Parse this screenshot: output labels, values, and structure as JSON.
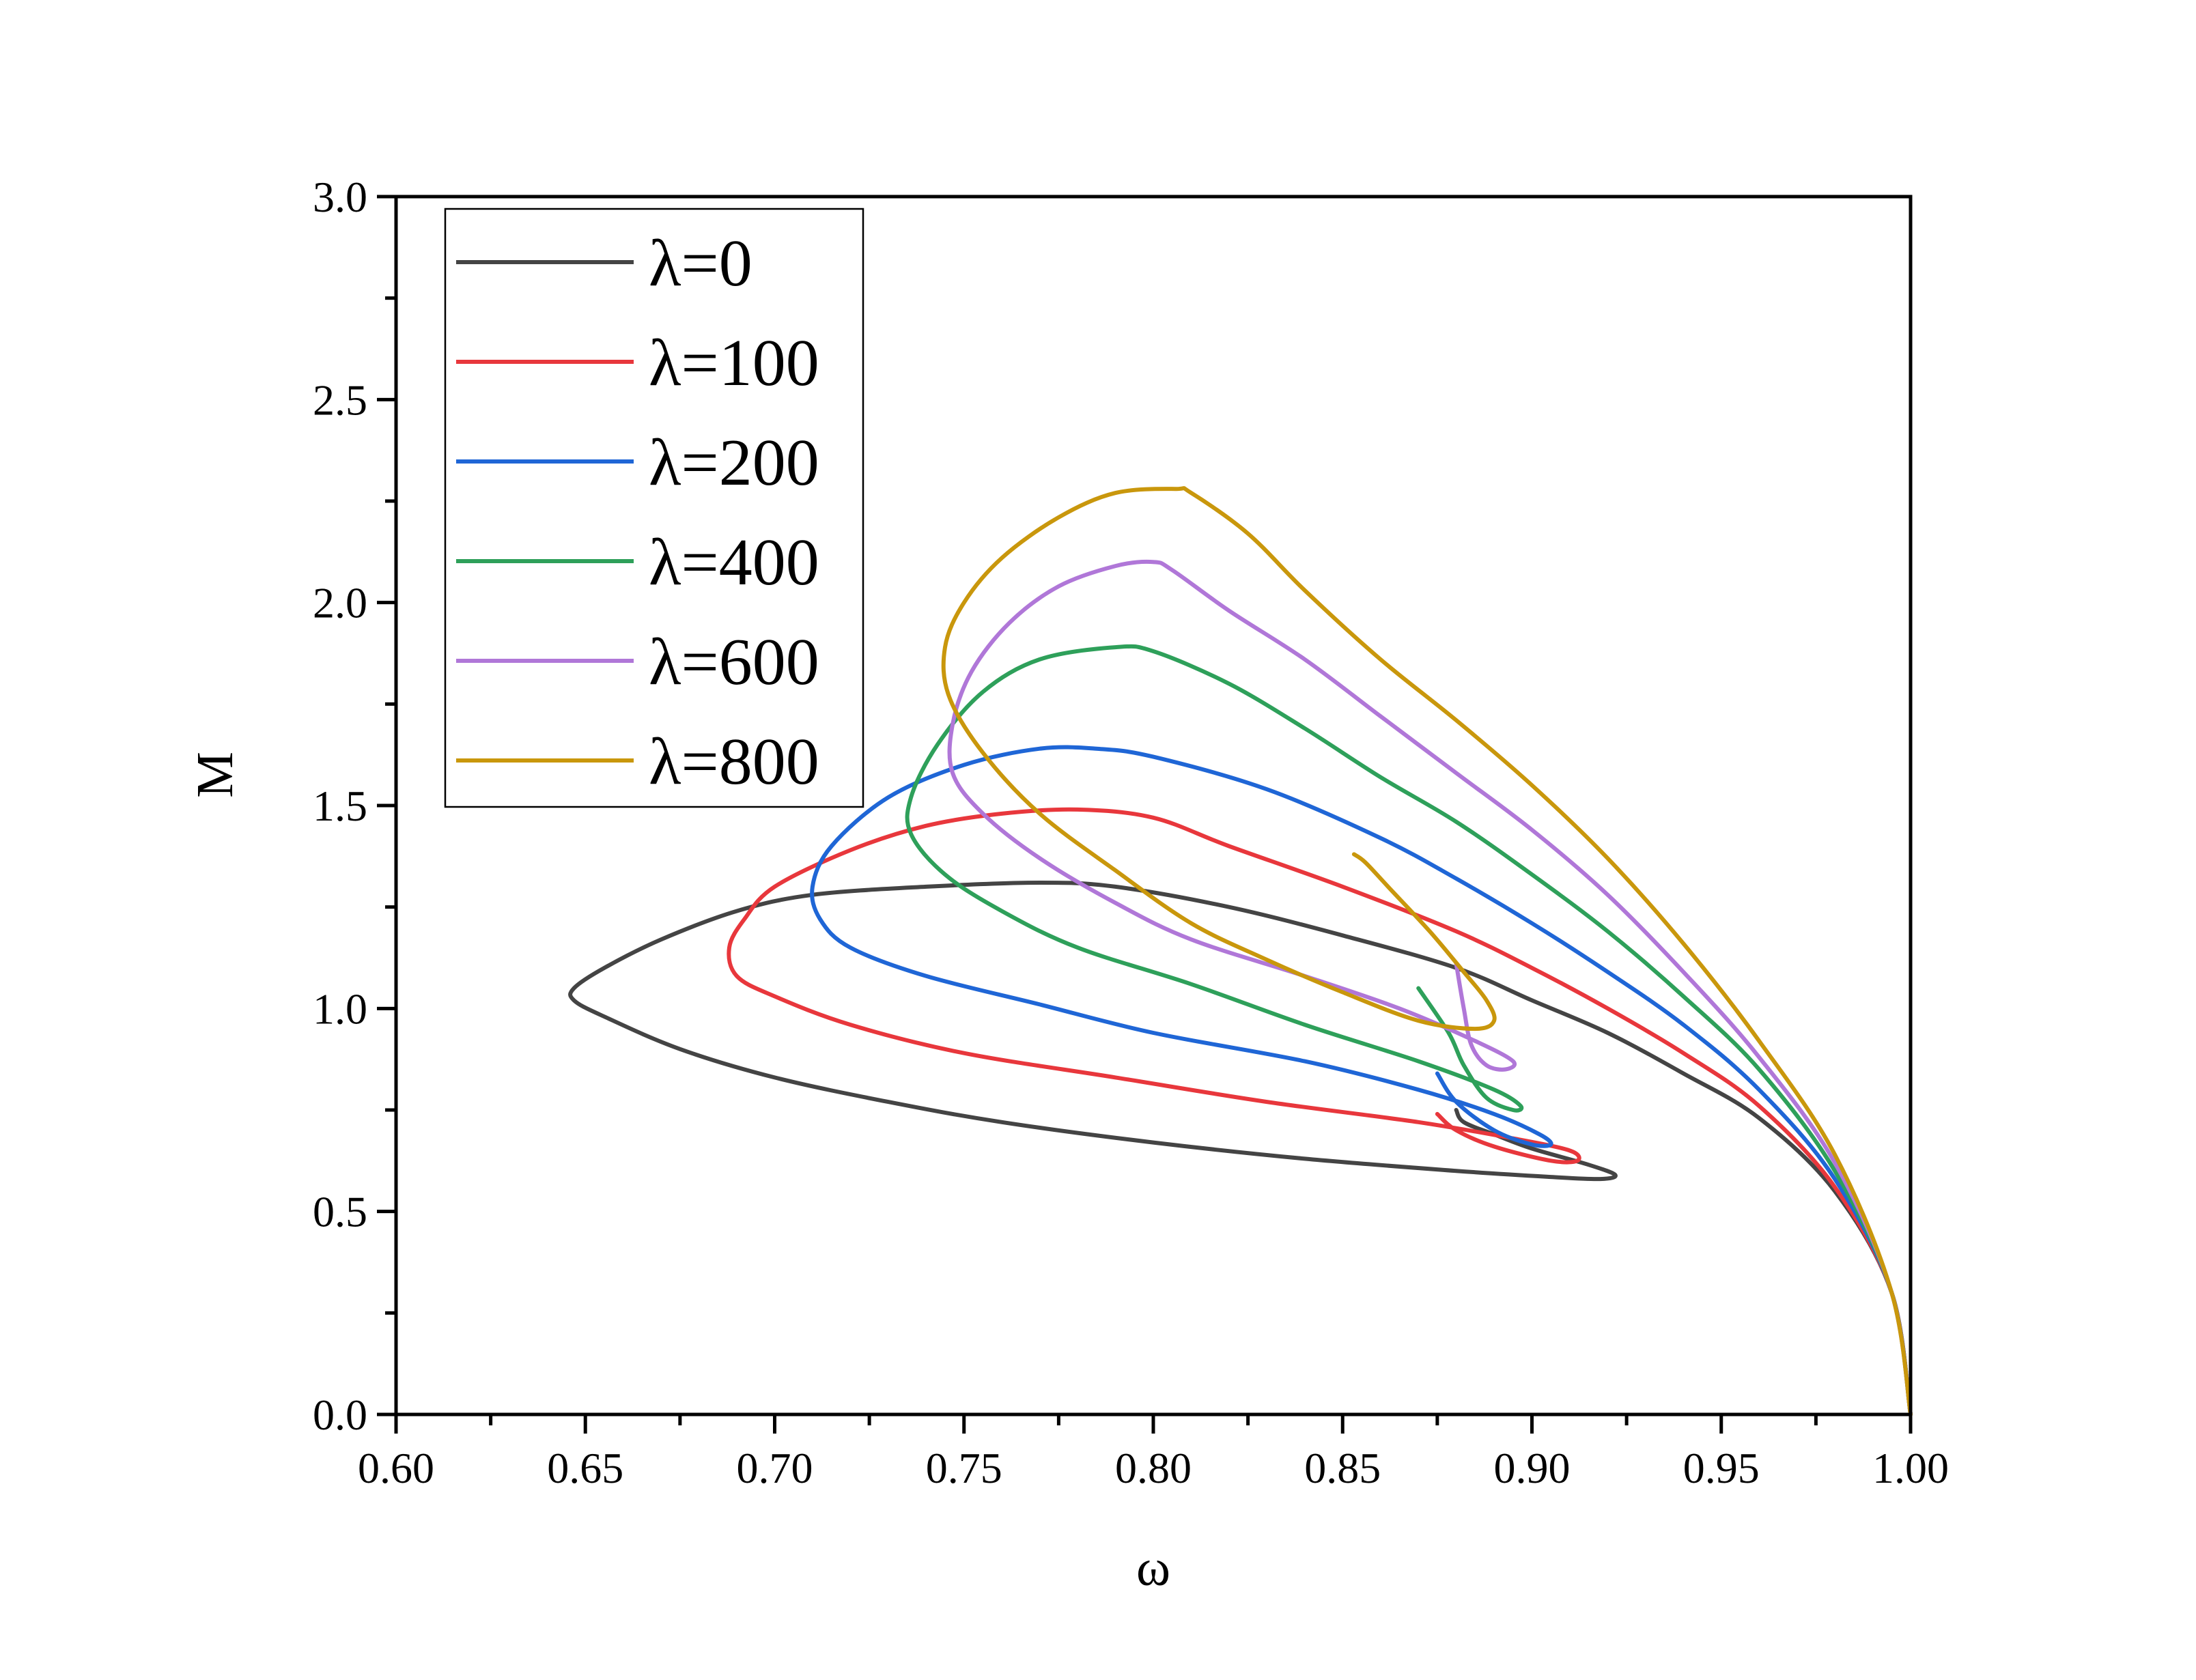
{
  "chart_data": {
    "type": "line",
    "xlabel": "ω",
    "ylabel": "M",
    "xlim": [
      0.6,
      1.0
    ],
    "ylim": [
      0.0,
      3.0
    ],
    "x_ticks": [
      "0.60",
      "0.65",
      "0.70",
      "0.75",
      "0.80",
      "0.85",
      "0.90",
      "0.95",
      "1.00"
    ],
    "y_ticks": [
      "0.0",
      "0.5",
      "1.0",
      "1.5",
      "2.0",
      "2.5",
      "3.0"
    ],
    "grid": false,
    "legend_position": "top-left",
    "series": [
      {
        "name": "λ=0",
        "color": "#444444",
        "points": [
          [
            1.0,
            0.0
          ],
          [
            0.995,
            0.3
          ],
          [
            0.98,
            0.55
          ],
          [
            0.96,
            0.73
          ],
          [
            0.94,
            0.84
          ],
          [
            0.92,
            0.94
          ],
          [
            0.9,
            1.02
          ],
          [
            0.88,
            1.1
          ],
          [
            0.85,
            1.18
          ],
          [
            0.82,
            1.25
          ],
          [
            0.79,
            1.3
          ],
          [
            0.77,
            1.31
          ],
          [
            0.74,
            1.3
          ],
          [
            0.71,
            1.28
          ],
          [
            0.69,
            1.24
          ],
          [
            0.67,
            1.17
          ],
          [
            0.655,
            1.1
          ],
          [
            0.647,
            1.05
          ],
          [
            0.647,
            1.02
          ],
          [
            0.655,
            0.98
          ],
          [
            0.675,
            0.9
          ],
          [
            0.7,
            0.83
          ],
          [
            0.73,
            0.77
          ],
          [
            0.76,
            0.72
          ],
          [
            0.8,
            0.67
          ],
          [
            0.84,
            0.63
          ],
          [
            0.88,
            0.6
          ],
          [
            0.905,
            0.585
          ],
          [
            0.918,
            0.58
          ],
          [
            0.922,
            0.59
          ],
          [
            0.915,
            0.615
          ],
          [
            0.9,
            0.655
          ],
          [
            0.89,
            0.69
          ],
          [
            0.882,
            0.72
          ],
          [
            0.88,
            0.75
          ]
        ]
      },
      {
        "name": "λ=100",
        "color": "#e8373c",
        "points": [
          [
            1.0,
            0.0
          ],
          [
            0.995,
            0.3
          ],
          [
            0.98,
            0.56
          ],
          [
            0.96,
            0.76
          ],
          [
            0.94,
            0.89
          ],
          [
            0.92,
            1.0
          ],
          [
            0.9,
            1.1
          ],
          [
            0.88,
            1.19
          ],
          [
            0.85,
            1.3
          ],
          [
            0.82,
            1.4
          ],
          [
            0.8,
            1.47
          ],
          [
            0.78,
            1.49
          ],
          [
            0.76,
            1.48
          ],
          [
            0.74,
            1.45
          ],
          [
            0.72,
            1.39
          ],
          [
            0.7,
            1.3
          ],
          [
            0.692,
            1.22
          ],
          [
            0.688,
            1.15
          ],
          [
            0.69,
            1.08
          ],
          [
            0.7,
            1.03
          ],
          [
            0.72,
            0.96
          ],
          [
            0.75,
            0.89
          ],
          [
            0.79,
            0.83
          ],
          [
            0.83,
            0.77
          ],
          [
            0.87,
            0.72
          ],
          [
            0.895,
            0.68
          ],
          [
            0.91,
            0.65
          ],
          [
            0.912,
            0.625
          ],
          [
            0.905,
            0.625
          ],
          [
            0.89,
            0.66
          ],
          [
            0.88,
            0.7
          ],
          [
            0.875,
            0.74
          ]
        ]
      },
      {
        "name": "λ=200",
        "color": "#1f66d6",
        "points": [
          [
            1.0,
            0.0
          ],
          [
            0.995,
            0.3
          ],
          [
            0.98,
            0.58
          ],
          [
            0.96,
            0.8
          ],
          [
            0.94,
            0.96
          ],
          [
            0.92,
            1.09
          ],
          [
            0.9,
            1.21
          ],
          [
            0.88,
            1.32
          ],
          [
            0.86,
            1.42
          ],
          [
            0.83,
            1.54
          ],
          [
            0.8,
            1.62
          ],
          [
            0.785,
            1.64
          ],
          [
            0.77,
            1.64
          ],
          [
            0.75,
            1.6
          ],
          [
            0.73,
            1.52
          ],
          [
            0.715,
            1.4
          ],
          [
            0.71,
            1.3
          ],
          [
            0.712,
            1.22
          ],
          [
            0.72,
            1.15
          ],
          [
            0.74,
            1.08
          ],
          [
            0.77,
            1.01
          ],
          [
            0.8,
            0.94
          ],
          [
            0.84,
            0.87
          ],
          [
            0.87,
            0.8
          ],
          [
            0.89,
            0.74
          ],
          [
            0.902,
            0.69
          ],
          [
            0.905,
            0.665
          ],
          [
            0.9,
            0.665
          ],
          [
            0.89,
            0.7
          ],
          [
            0.88,
            0.77
          ],
          [
            0.875,
            0.84
          ]
        ]
      },
      {
        "name": "λ=400",
        "color": "#2ea05a",
        "points": [
          [
            1.0,
            0.0
          ],
          [
            0.995,
            0.3
          ],
          [
            0.98,
            0.6
          ],
          [
            0.96,
            0.85
          ],
          [
            0.94,
            1.03
          ],
          [
            0.92,
            1.19
          ],
          [
            0.9,
            1.33
          ],
          [
            0.88,
            1.46
          ],
          [
            0.86,
            1.57
          ],
          [
            0.84,
            1.69
          ],
          [
            0.82,
            1.8
          ],
          [
            0.8,
            1.88
          ],
          [
            0.79,
            1.89
          ],
          [
            0.77,
            1.86
          ],
          [
            0.755,
            1.78
          ],
          [
            0.743,
            1.65
          ],
          [
            0.736,
            1.52
          ],
          [
            0.736,
            1.43
          ],
          [
            0.745,
            1.33
          ],
          [
            0.76,
            1.24
          ],
          [
            0.78,
            1.15
          ],
          [
            0.81,
            1.06
          ],
          [
            0.84,
            0.96
          ],
          [
            0.87,
            0.87
          ],
          [
            0.89,
            0.8
          ],
          [
            0.897,
            0.76
          ],
          [
            0.895,
            0.75
          ],
          [
            0.888,
            0.78
          ],
          [
            0.882,
            0.86
          ],
          [
            0.878,
            0.94
          ],
          [
            0.87,
            1.05
          ]
        ]
      },
      {
        "name": "λ=600",
        "color": "#b077d8",
        "points": [
          [
            1.0,
            0.0
          ],
          [
            0.995,
            0.3
          ],
          [
            0.98,
            0.62
          ],
          [
            0.96,
            0.88
          ],
          [
            0.94,
            1.09
          ],
          [
            0.92,
            1.28
          ],
          [
            0.9,
            1.44
          ],
          [
            0.88,
            1.58
          ],
          [
            0.86,
            1.72
          ],
          [
            0.84,
            1.86
          ],
          [
            0.82,
            1.98
          ],
          [
            0.805,
            2.08
          ],
          [
            0.8,
            2.1
          ],
          [
            0.79,
            2.09
          ],
          [
            0.775,
            2.04
          ],
          [
            0.762,
            1.95
          ],
          [
            0.752,
            1.83
          ],
          [
            0.747,
            1.7
          ],
          [
            0.747,
            1.58
          ],
          [
            0.755,
            1.48
          ],
          [
            0.77,
            1.37
          ],
          [
            0.79,
            1.26
          ],
          [
            0.81,
            1.17
          ],
          [
            0.84,
            1.08
          ],
          [
            0.865,
            1.0
          ],
          [
            0.885,
            0.92
          ],
          [
            0.895,
            0.87
          ],
          [
            0.893,
            0.85
          ],
          [
            0.888,
            0.86
          ],
          [
            0.884,
            0.91
          ],
          [
            0.882,
            1.0
          ],
          [
            0.88,
            1.11
          ]
        ]
      },
      {
        "name": "λ=800",
        "color": "#c9970c",
        "points": [
          [
            1.0,
            0.0
          ],
          [
            0.995,
            0.3
          ],
          [
            0.98,
            0.64
          ],
          [
            0.96,
            0.92
          ],
          [
            0.94,
            1.16
          ],
          [
            0.92,
            1.37
          ],
          [
            0.9,
            1.55
          ],
          [
            0.88,
            1.71
          ],
          [
            0.86,
            1.86
          ],
          [
            0.84,
            2.03
          ],
          [
            0.825,
            2.17
          ],
          [
            0.81,
            2.27
          ],
          [
            0.806,
            2.28
          ],
          [
            0.79,
            2.27
          ],
          [
            0.775,
            2.21
          ],
          [
            0.76,
            2.11
          ],
          [
            0.75,
            2.0
          ],
          [
            0.745,
            1.89
          ],
          [
            0.746,
            1.77
          ],
          [
            0.755,
            1.63
          ],
          [
            0.77,
            1.48
          ],
          [
            0.79,
            1.34
          ],
          [
            0.81,
            1.21
          ],
          [
            0.83,
            1.12
          ],
          [
            0.85,
            1.04
          ],
          [
            0.87,
            0.97
          ],
          [
            0.885,
            0.95
          ],
          [
            0.89,
            0.97
          ],
          [
            0.888,
            1.02
          ],
          [
            0.882,
            1.09
          ],
          [
            0.873,
            1.19
          ],
          [
            0.862,
            1.3
          ],
          [
            0.856,
            1.36
          ],
          [
            0.853,
            1.38
          ]
        ]
      }
    ]
  }
}
